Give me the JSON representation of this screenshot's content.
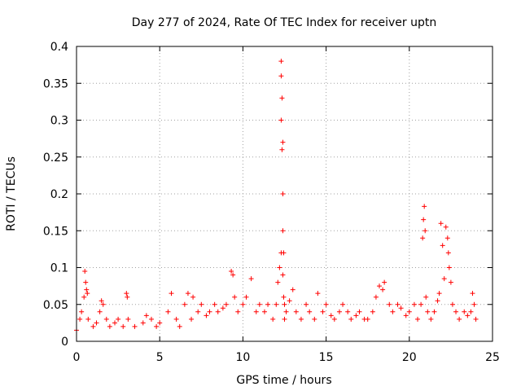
{
  "chart_data": {
    "type": "scatter",
    "title": "Day 277 of 2024, Rate Of TEC Index for receiver uptn",
    "xlabel": "GPS time / hours",
    "ylabel": "ROTI / TECUs",
    "xlim": [
      0,
      25
    ],
    "ylim": [
      0,
      0.4
    ],
    "xticks": [
      0,
      5,
      10,
      15,
      20,
      25
    ],
    "xtick_labels": [
      "0",
      "5",
      "10",
      "15",
      "20",
      "25"
    ],
    "yticks": [
      0,
      0.05,
      0.1,
      0.15,
      0.2,
      0.25,
      0.3,
      0.35,
      0.4
    ],
    "ytick_labels": [
      "0",
      "0.05",
      "0.1",
      "0.15",
      "0.2",
      "0.25",
      "0.3",
      "0.35",
      "0.4"
    ],
    "grid": true,
    "marker": "+",
    "color": "#ff0000",
    "series": [
      {
        "x": [
          0.0,
          0.2,
          0.3,
          0.45,
          0.5,
          0.55,
          0.6,
          0.65,
          0.7,
          1.0,
          1.2,
          1.4,
          1.5,
          1.6,
          1.8,
          2.0,
          2.3,
          2.5,
          2.8,
          3.0,
          3.05,
          3.1,
          3.5,
          4.0,
          4.2,
          4.5,
          4.8,
          5.0,
          5.5,
          5.7,
          6.0,
          6.2,
          6.5,
          6.7,
          6.9,
          7.0,
          7.3,
          7.5,
          7.8,
          8.0,
          8.3,
          8.5,
          8.8,
          9.0,
          9.3,
          9.4,
          9.5,
          9.7,
          10.0,
          10.2,
          10.5,
          10.8,
          11.0,
          11.3,
          11.5,
          11.8,
          12.0,
          12.1,
          12.2,
          12.3,
          12.3,
          12.3,
          12.3,
          12.35,
          12.35,
          12.4,
          12.4,
          12.4,
          12.4,
          12.45,
          12.45,
          12.5,
          12.5,
          12.6,
          12.8,
          13.0,
          13.2,
          13.5,
          13.8,
          14.0,
          14.3,
          14.5,
          14.8,
          15.0,
          15.3,
          15.5,
          15.8,
          16.0,
          16.3,
          16.5,
          16.8,
          17.0,
          17.3,
          17.5,
          17.8,
          18.0,
          18.2,
          18.4,
          18.5,
          18.8,
          19.0,
          19.3,
          19.5,
          19.8,
          20.0,
          20.3,
          20.5,
          20.7,
          20.8,
          20.85,
          20.9,
          20.95,
          21.0,
          21.1,
          21.3,
          21.5,
          21.7,
          21.8,
          21.9,
          22.0,
          22.1,
          22.2,
          22.3,
          22.35,
          22.4,
          22.5,
          22.6,
          22.8,
          23.0,
          23.3,
          23.5,
          23.7,
          23.8,
          23.9,
          24.0
        ],
        "y": [
          0.015,
          0.03,
          0.04,
          0.06,
          0.095,
          0.08,
          0.07,
          0.065,
          0.03,
          0.02,
          0.025,
          0.04,
          0.055,
          0.05,
          0.03,
          0.02,
          0.025,
          0.03,
          0.02,
          0.065,
          0.06,
          0.03,
          0.02,
          0.025,
          0.035,
          0.03,
          0.02,
          0.025,
          0.04,
          0.065,
          0.03,
          0.02,
          0.05,
          0.065,
          0.03,
          0.06,
          0.04,
          0.05,
          0.035,
          0.04,
          0.05,
          0.04,
          0.045,
          0.05,
          0.095,
          0.09,
          0.06,
          0.04,
          0.05,
          0.06,
          0.085,
          0.04,
          0.05,
          0.04,
          0.05,
          0.03,
          0.05,
          0.08,
          0.1,
          0.12,
          0.38,
          0.36,
          0.3,
          0.26,
          0.33,
          0.27,
          0.2,
          0.15,
          0.09,
          0.12,
          0.06,
          0.05,
          0.03,
          0.04,
          0.055,
          0.07,
          0.04,
          0.03,
          0.05,
          0.04,
          0.03,
          0.065,
          0.04,
          0.05,
          0.035,
          0.03,
          0.04,
          0.05,
          0.04,
          0.03,
          0.035,
          0.04,
          0.03,
          0.03,
          0.04,
          0.06,
          0.075,
          0.07,
          0.08,
          0.05,
          0.04,
          0.05,
          0.045,
          0.035,
          0.04,
          0.05,
          0.03,
          0.05,
          0.14,
          0.165,
          0.183,
          0.15,
          0.06,
          0.04,
          0.03,
          0.04,
          0.055,
          0.065,
          0.16,
          0.13,
          0.085,
          0.155,
          0.14,
          0.12,
          0.1,
          0.08,
          0.05,
          0.04,
          0.03,
          0.04,
          0.035,
          0.04,
          0.065,
          0.05,
          0.03
        ]
      }
    ]
  }
}
